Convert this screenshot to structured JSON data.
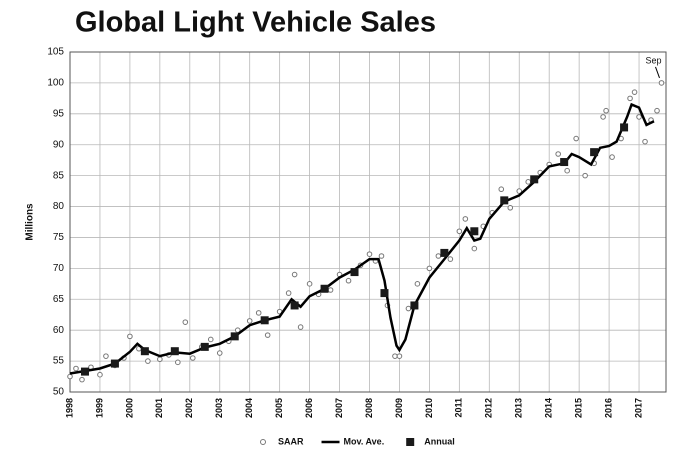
{
  "chart_data": {
    "type": "line",
    "title": "Global Light Vehicle Sales",
    "y_label": "Millions",
    "xlim": [
      1998,
      2017.9
    ],
    "xticks": [
      1998,
      1999,
      2000,
      2001,
      2002,
      2003,
      2004,
      2005,
      2006,
      2007,
      2008,
      2009,
      2010,
      2011,
      2012,
      2013,
      2014,
      2015,
      2016,
      2017
    ],
    "ylim": [
      50,
      105
    ],
    "yticks": [
      50,
      55,
      60,
      65,
      70,
      75,
      80,
      85,
      90,
      95,
      100,
      105
    ],
    "grid": true,
    "legend": "bottom",
    "annotations": [
      {
        "text": "Sep"
      }
    ],
    "series": [
      {
        "name": "SAAR",
        "type": "scatter",
        "marker": "circle",
        "color": "#777777",
        "x": [
          1998.0,
          1998.2,
          1998.4,
          1998.7,
          1999.0,
          1999.2,
          1999.5,
          1999.8,
          2000.0,
          2000.3,
          2000.6,
          2001.0,
          2001.3,
          2001.6,
          2001.85,
          2002.1,
          2002.4,
          2002.7,
          2003.0,
          2003.3,
          2003.6,
          2004.0,
          2004.3,
          2004.6,
          2005.0,
          2005.3,
          2005.5,
          2005.7,
          2006.0,
          2006.3,
          2006.7,
          2007.0,
          2007.3,
          2007.7,
          2008.0,
          2008.2,
          2008.4,
          2008.6,
          2008.85,
          2009.0,
          2009.3,
          2009.6,
          2010.0,
          2010.3,
          2010.7,
          2011.0,
          2011.2,
          2011.5,
          2011.8,
          2012.1,
          2012.4,
          2012.7,
          2013.0,
          2013.3,
          2013.7,
          2014.0,
          2014.3,
          2014.6,
          2014.9,
          2015.2,
          2015.5,
          2015.8,
          2015.9,
          2016.1,
          2016.4,
          2016.7,
          2016.85,
          2017.0,
          2017.2,
          2017.4,
          2017.6,
          2017.75
        ],
        "values": [
          52.5,
          53.8,
          52.0,
          54.0,
          52.8,
          55.8,
          54.3,
          55.5,
          59.0,
          57.0,
          55.0,
          55.3,
          56.0,
          54.8,
          61.3,
          55.5,
          57.3,
          58.5,
          56.3,
          58.2,
          60.0,
          61.5,
          62.8,
          59.2,
          63.0,
          66.0,
          69.0,
          60.5,
          67.5,
          65.8,
          66.5,
          69.0,
          68.0,
          70.5,
          72.3,
          71.2,
          72.0,
          64.0,
          55.8,
          55.8,
          63.5,
          67.5,
          70.0,
          72.0,
          71.5,
          76.0,
          78.0,
          73.2,
          76.8,
          79.0,
          82.8,
          79.8,
          82.5,
          84.0,
          85.5,
          86.8,
          88.5,
          85.8,
          91.0,
          85.0,
          87.0,
          94.5,
          95.5,
          88.0,
          91.0,
          97.5,
          98.5,
          94.5,
          90.5,
          94.0,
          95.5,
          100.0
        ]
      },
      {
        "name": "Mov. Ave.",
        "type": "line",
        "color": "#000000",
        "x": [
          1998.0,
          1998.5,
          1999.0,
          1999.5,
          2000.0,
          2000.25,
          2000.5,
          2001.0,
          2001.5,
          2002.0,
          2002.5,
          2003.0,
          2003.5,
          2004.0,
          2004.5,
          2005.0,
          2005.4,
          2005.7,
          2006.0,
          2006.5,
          2007.0,
          2007.5,
          2008.0,
          2008.3,
          2008.5,
          2008.7,
          2008.9,
          2009.0,
          2009.2,
          2009.5,
          2010.0,
          2010.5,
          2011.0,
          2011.25,
          2011.5,
          2011.7,
          2012.0,
          2012.5,
          2013.0,
          2013.5,
          2014.0,
          2014.5,
          2014.75,
          2015.0,
          2015.4,
          2015.7,
          2016.0,
          2016.25,
          2016.6,
          2016.75,
          2017.0,
          2017.25,
          2017.5
        ],
        "values": [
          53.0,
          53.4,
          53.8,
          54.6,
          56.5,
          57.8,
          56.8,
          55.8,
          56.4,
          56.2,
          57.2,
          57.8,
          59.0,
          60.8,
          61.6,
          62.2,
          65.0,
          63.8,
          65.5,
          66.7,
          68.5,
          69.8,
          71.5,
          71.5,
          68.0,
          62.0,
          57.5,
          56.8,
          58.5,
          64.0,
          68.5,
          71.5,
          74.5,
          76.5,
          74.5,
          74.8,
          78.0,
          80.8,
          81.8,
          84.0,
          86.5,
          87.0,
          88.5,
          88.0,
          86.8,
          89.5,
          89.8,
          90.5,
          94.5,
          96.5,
          96.0,
          93.2,
          93.8
        ]
      },
      {
        "name": "Annual",
        "type": "scatter",
        "marker": "square",
        "color": "#1a1a1a",
        "x": [
          1998.5,
          1999.5,
          2000.5,
          2001.5,
          2002.5,
          2003.5,
          2004.5,
          2005.5,
          2006.5,
          2007.5,
          2008.5,
          2009.5,
          2010.5,
          2011.5,
          2012.5,
          2013.5,
          2014.5,
          2015.5,
          2016.5
        ],
        "values": [
          53.3,
          54.6,
          56.6,
          56.6,
          57.3,
          59.0,
          61.6,
          64.0,
          66.7,
          69.4,
          66.0,
          64.0,
          72.5,
          76.0,
          81.0,
          84.4,
          87.2,
          88.8,
          92.8
        ]
      }
    ]
  }
}
